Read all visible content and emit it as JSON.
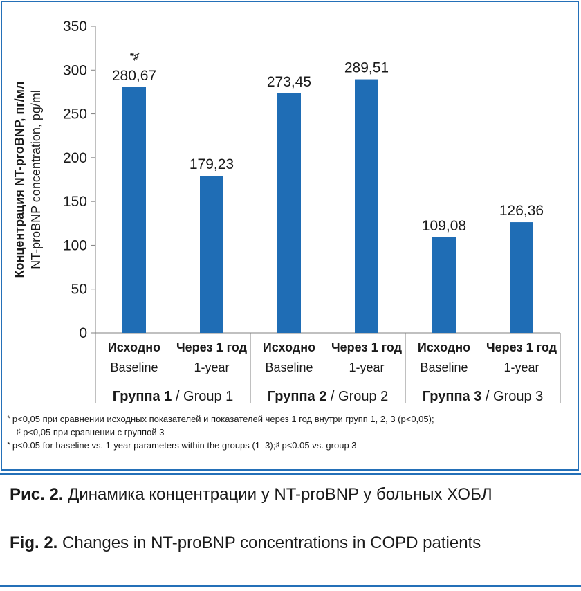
{
  "chart_data": {
    "type": "bar",
    "ylim": [
      0,
      350
    ],
    "yticks": [
      0,
      50,
      100,
      150,
      200,
      250,
      300,
      350
    ],
    "ylabel_ru": "Концентрация NT-proBNP, пг/мл",
    "ylabel_en": "NT-proBNP concentration, pg/ml",
    "bars": [
      {
        "label_ru": "Исходно",
        "label_en": "Baseline",
        "value": 280.67,
        "value_label": "280,67",
        "annotation": "*♯"
      },
      {
        "label_ru": "Через 1 год",
        "label_en": "1-year",
        "value": 179.23,
        "value_label": "179,23",
        "annotation": ""
      },
      {
        "label_ru": "Исходно",
        "label_en": "Baseline",
        "value": 273.45,
        "value_label": "273,45",
        "annotation": ""
      },
      {
        "label_ru": "Через 1 год",
        "label_en": "1-year",
        "value": 289.51,
        "value_label": "289,51",
        "annotation": ""
      },
      {
        "label_ru": "Исходно",
        "label_en": "Baseline",
        "value": 109.08,
        "value_label": "109,08",
        "annotation": ""
      },
      {
        "label_ru": "Через 1 год",
        "label_en": "1-year",
        "value": 126.36,
        "value_label": "126,36",
        "annotation": ""
      }
    ],
    "groups": [
      {
        "label_ru": "Группа 1",
        "label_en": " / Group 1"
      },
      {
        "label_ru": "Группа 2",
        "label_en": " / Group 2"
      },
      {
        "label_ru": "Группа 3",
        "label_en": " / Group 3"
      }
    ],
    "colors": {
      "bar": "#1f6db5",
      "axis": "#808080",
      "frame": "#2470b8"
    }
  },
  "footnotes": {
    "fn1_mark": "*",
    "fn1_text": " p<0,05 при сравнении исходных показателей и показателей через 1 год внутри групп 1, 2, 3 (p<0,05);",
    "fn2_mark": "♯",
    "fn2_text": " p<0,05 при сравнении с группой 3",
    "fn3_mark": "*",
    "fn3_text": " p<0.05 for baseline vs. 1-year parameters within the groups (1–3);",
    "fn3b_mark": "♯",
    "fn3b_text": " p<0.05 vs. group 3"
  },
  "caption": {
    "ru_num": "Рис. 2.",
    "ru_text": " Динамика концентрации у NT-proBNP у больных ХОБЛ",
    "en_num": "Fig. 2.",
    "en_text": " Changes in NT-proBNP concentrations in COPD patients"
  }
}
